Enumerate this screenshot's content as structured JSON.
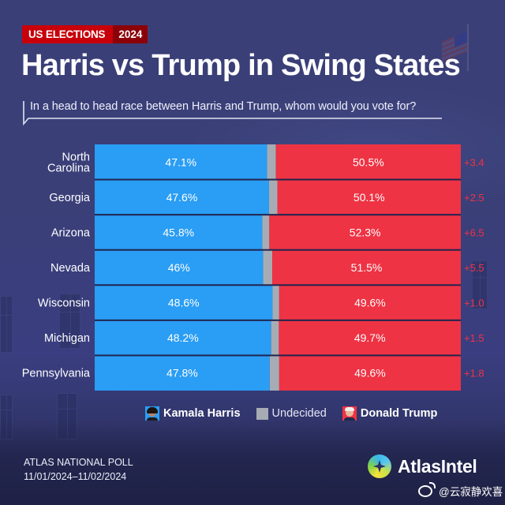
{
  "badge": {
    "category": "US ELECTIONS",
    "year": "2024"
  },
  "title": "Harris vs Trump in Swing States",
  "question": "In a head to head race between Harris and Trump, whom would you vote for?",
  "colors": {
    "harris": "#2a9df4",
    "undecided": "#a7acb4",
    "trump": "#ee3344",
    "margin": "#ee3344",
    "background": "#3a3f75"
  },
  "legend": [
    {
      "key": "harris",
      "label": "Kamala Harris",
      "icon": "harris-portrait-icon"
    },
    {
      "key": "undecided",
      "label": "Undecided",
      "icon": "grey-square-icon"
    },
    {
      "key": "trump",
      "label": "Donald Trump",
      "icon": "trump-portrait-icon"
    }
  ],
  "footer": {
    "poll_name": "ATLAS NATIONAL POLL",
    "dates": "11/01/2024–11/02/2024"
  },
  "brand": {
    "name": "AtlasIntel",
    "icon": "atlasintel-logo-icon"
  },
  "watermark": {
    "icon": "weibo-icon",
    "text": "@云寂静欢喜"
  },
  "chart_data": {
    "type": "bar",
    "stacked": true,
    "orientation": "horizontal",
    "title": "Harris vs Trump in Swing States",
    "subtitle": "In a head to head race between Harris and Trump, whom would you vote for?",
    "xlim": [
      0,
      100
    ],
    "unit": "%",
    "legend_position": "bottom",
    "categories": [
      "North Carolina",
      "Georgia",
      "Arizona",
      "Nevada",
      "Wisconsin",
      "Michigan",
      "Pennsylvania"
    ],
    "category_lines": [
      [
        "North",
        "Carolina"
      ],
      [
        "Georgia"
      ],
      [
        "Arizona"
      ],
      [
        "Nevada"
      ],
      [
        "Wisconsin"
      ],
      [
        "Michigan"
      ],
      [
        "Pennsylvania"
      ]
    ],
    "series": [
      {
        "name": "Kamala Harris",
        "key": "harris",
        "values": [
          47.1,
          47.6,
          45.8,
          46,
          48.6,
          48.2,
          47.8
        ],
        "labels": [
          "47.1%",
          "47.6%",
          "45.8%",
          "46%",
          "48.6%",
          "48.2%",
          "47.8%"
        ]
      },
      {
        "name": "Undecided",
        "key": "undecided",
        "values": [
          2.4,
          2.3,
          1.9,
          2.5,
          1.8,
          2.1,
          2.6
        ],
        "labels": []
      },
      {
        "name": "Donald Trump",
        "key": "trump",
        "values": [
          50.5,
          50.1,
          52.3,
          51.5,
          49.6,
          49.7,
          49.6
        ],
        "labels": [
          "50.5%",
          "50.1%",
          "52.3%",
          "51.5%",
          "49.6%",
          "49.7%",
          "49.6%"
        ]
      }
    ],
    "margins": [
      "+3.4",
      "+2.5",
      "+6.5",
      "+5.5",
      "+1.0",
      "+1.5",
      "+1.8"
    ]
  }
}
